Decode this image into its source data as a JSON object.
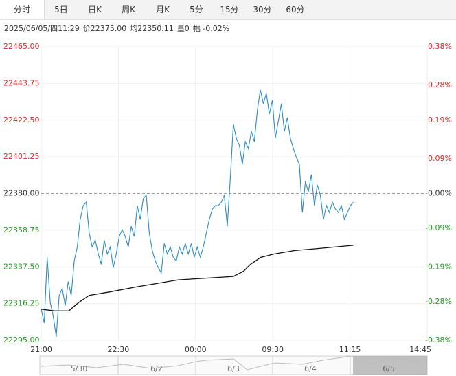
{
  "tabs": [
    "分时",
    "5日",
    "日K",
    "周K",
    "月K",
    "5分",
    "15分",
    "30分",
    "60分"
  ],
  "selected_tab": 0,
  "info": [
    "2025/06/05/四11:29",
    "价22375.00",
    "均22350.11",
    "量0",
    "幅 -0.02%"
  ],
  "chart_data": {
    "type": "line",
    "reference": 22380,
    "up_color": "#e02424",
    "down_color": "#1f9a1f",
    "flat_color": "#333333",
    "xlim": [
      0,
      450
    ],
    "xticks": [
      {
        "value": 0,
        "label": "21:00"
      },
      {
        "value": 90,
        "label": "22:30"
      },
      {
        "value": 180,
        "label": "00:00"
      },
      {
        "value": 270,
        "label": "09:30"
      },
      {
        "value": 360,
        "label": "11:15"
      },
      {
        "value": 450,
        "label": "14:45"
      }
    ],
    "ylim": [
      22295,
      22465
    ],
    "yticks": [
      {
        "value": 22465,
        "label": "22465.00"
      },
      {
        "value": 22443.75,
        "label": "22443.75"
      },
      {
        "value": 22422.5,
        "label": "22422.50"
      },
      {
        "value": 22401.25,
        "label": "22401.25"
      },
      {
        "value": 22380,
        "label": "22380.00"
      },
      {
        "value": 22358.75,
        "label": "22358.75"
      },
      {
        "value": 22337.5,
        "label": "22337.50"
      },
      {
        "value": 22316.25,
        "label": "22316.25"
      },
      {
        "value": 22295,
        "label": "22295.00"
      }
    ],
    "y2lim": [
      -0.38,
      0.38
    ],
    "y2ticks": [
      {
        "value": 0.38,
        "label": "0.38%"
      },
      {
        "value": 0.28,
        "label": "0.28%"
      },
      {
        "value": 0.19,
        "label": "0.19%"
      },
      {
        "value": 0.09,
        "label": "0.09%"
      },
      {
        "value": 0,
        "label": "0.00%"
      },
      {
        "value": -0.09,
        "label": "-0.09%"
      },
      {
        "value": -0.19,
        "label": "-0.19%"
      },
      {
        "value": -0.28,
        "label": "-0.28%"
      },
      {
        "value": -0.38,
        "label": "-0.38%"
      }
    ],
    "series": [
      {
        "name": "价",
        "color": "#2b8bc6",
        "x": [
          0,
          3.5,
          7,
          10.5,
          14,
          17.5,
          21,
          24.5,
          28,
          31.5,
          35,
          38.5,
          42,
          45.5,
          49,
          52.5,
          56,
          59.5,
          63,
          66.5,
          70,
          73.5,
          77,
          80.5,
          84,
          87.5,
          91,
          94.5,
          98,
          101.5,
          105,
          108.5,
          112,
          115.5,
          119,
          122.5,
          126,
          129.5,
          133,
          136.5,
          140,
          143.5,
          147,
          150.5,
          154,
          157.5,
          161,
          164.5,
          168,
          171.5,
          175,
          178.5,
          182,
          185.5,
          189,
          192.5,
          196,
          199.5,
          203,
          206.5,
          210,
          213.5,
          217,
          220.5,
          224,
          227.5,
          231,
          234.5,
          238,
          241.5,
          245,
          248.5,
          252,
          255.5,
          259,
          262.5,
          266,
          269.5,
          273,
          276.5,
          280,
          283.5,
          287,
          290.5,
          294,
          297.5,
          301,
          304.5,
          308,
          311.5,
          315,
          318.5,
          322,
          325.5,
          329,
          332.5,
          336,
          339.5,
          343,
          346.5,
          350,
          353.5,
          357,
          360.5,
          364
        ],
        "values": [
          22313,
          22305,
          22343,
          22317,
          22309,
          22297,
          22321,
          22325,
          22315,
          22329,
          22321,
          22341,
          22349,
          22365,
          22373,
          22375,
          22357,
          22349,
          22353,
          22345,
          22339,
          22353,
          22345,
          22349,
          22337,
          22345,
          22355,
          22359,
          22355,
          22349,
          22361,
          22355,
          22373,
          22365,
          22377,
          22379,
          22357,
          22347,
          22341,
          22337,
          22334,
          22351,
          22345,
          22349,
          22343,
          22341,
          22349,
          22345,
          22351,
          22345,
          22351,
          22343,
          22349,
          22343,
          22349,
          22357,
          22365,
          22371,
          22373,
          22373,
          22375,
          22379,
          22361,
          22389,
          22420,
          22412,
          22408,
          22397,
          22410,
          22406,
          22416,
          22410,
          22428,
          22440,
          22432,
          22438,
          22426,
          22434,
          22412,
          22422,
          22432,
          22416,
          22424,
          22412,
          22406,
          22401,
          22397,
          22369,
          22387,
          22381,
          22391,
          22373,
          22385,
          22379,
          22365,
          22373,
          22369,
          22375,
          22371,
          22369,
          22373,
          22365,
          22369,
          22373,
          22375
        ]
      },
      {
        "name": "均",
        "color": "#111111",
        "x": [
          0,
          16,
          32,
          44,
          56,
          80,
          112,
          136,
          160,
          192,
          224,
          236,
          244,
          256,
          272,
          296,
          320,
          364
        ],
        "values": [
          22313,
          22312,
          22312,
          22317,
          22321,
          22323,
          22326,
          22328,
          22330,
          22331,
          22332,
          22335,
          22339,
          22343,
          22345,
          22347,
          22348,
          22350
        ]
      }
    ]
  },
  "navigator": {
    "dates": [
      "5/30",
      "6/2",
      "6/3",
      "6/4",
      "6/5"
    ]
  }
}
